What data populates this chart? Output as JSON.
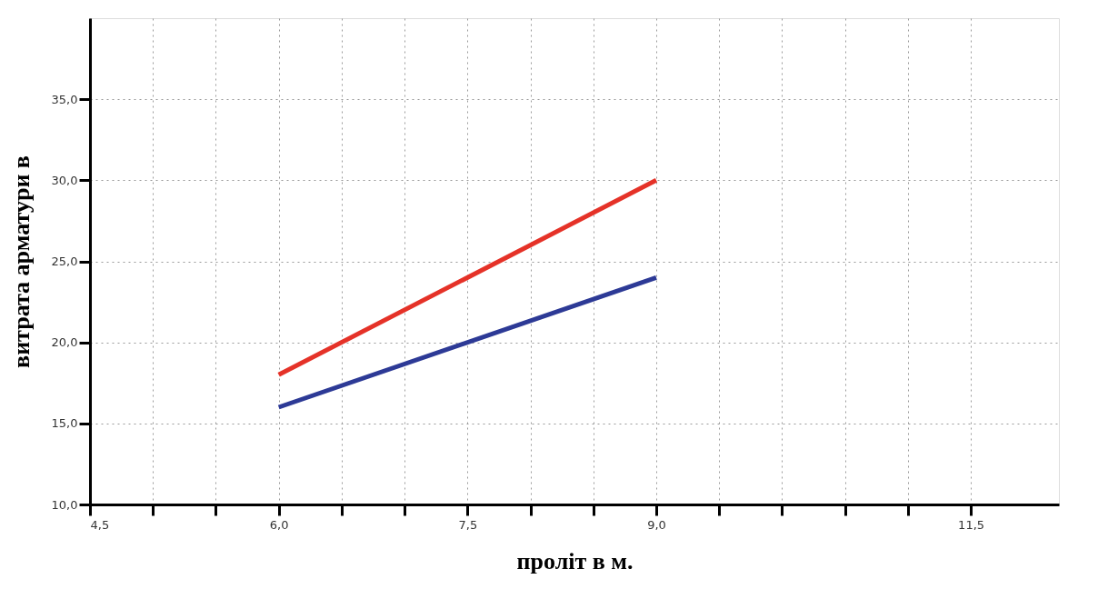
{
  "chart_data": {
    "type": "line",
    "xlabel": "проліт в м.",
    "ylabel": "витрата арматури в",
    "x": [
      6,
      9
    ],
    "series": [
      {
        "color": "#e53228",
        "values": [
          18,
          30
        ]
      },
      {
        "color": "#2d3a96",
        "values": [
          16,
          24
        ]
      }
    ],
    "xlim": [
      4.5,
      12.2
    ],
    "xticks": [
      {
        "value": 4.5,
        "label": "4,5"
      },
      {
        "value": 5.0,
        "label": null
      },
      {
        "value": 5.5,
        "label": null
      },
      {
        "value": 6.0,
        "label": "6,0"
      },
      {
        "value": 6.5,
        "label": null
      },
      {
        "value": 7.0,
        "label": null
      },
      {
        "value": 7.5,
        "label": "7,5"
      },
      {
        "value": 8.0,
        "label": null
      },
      {
        "value": 8.5,
        "label": null
      },
      {
        "value": 9.0,
        "label": "9,0"
      },
      {
        "value": 9.5,
        "label": null
      },
      {
        "value": 10.0,
        "label": null
      },
      {
        "value": 10.5,
        "label": null
      },
      {
        "value": 11.0,
        "label": null
      },
      {
        "value": 11.5,
        "label": "11,5"
      }
    ],
    "ylim": [
      10,
      40
    ],
    "yticks": [
      {
        "value": 10,
        "label": "10,0"
      },
      {
        "value": 15,
        "label": "15,0"
      },
      {
        "value": 20,
        "label": "20,0"
      },
      {
        "value": 25,
        "label": "25,0"
      },
      {
        "value": 30,
        "label": "30,0"
      },
      {
        "value": 35,
        "label": "35,0"
      }
    ],
    "grid": true,
    "line_style": "solid",
    "marker": "none",
    "legend": false
  }
}
